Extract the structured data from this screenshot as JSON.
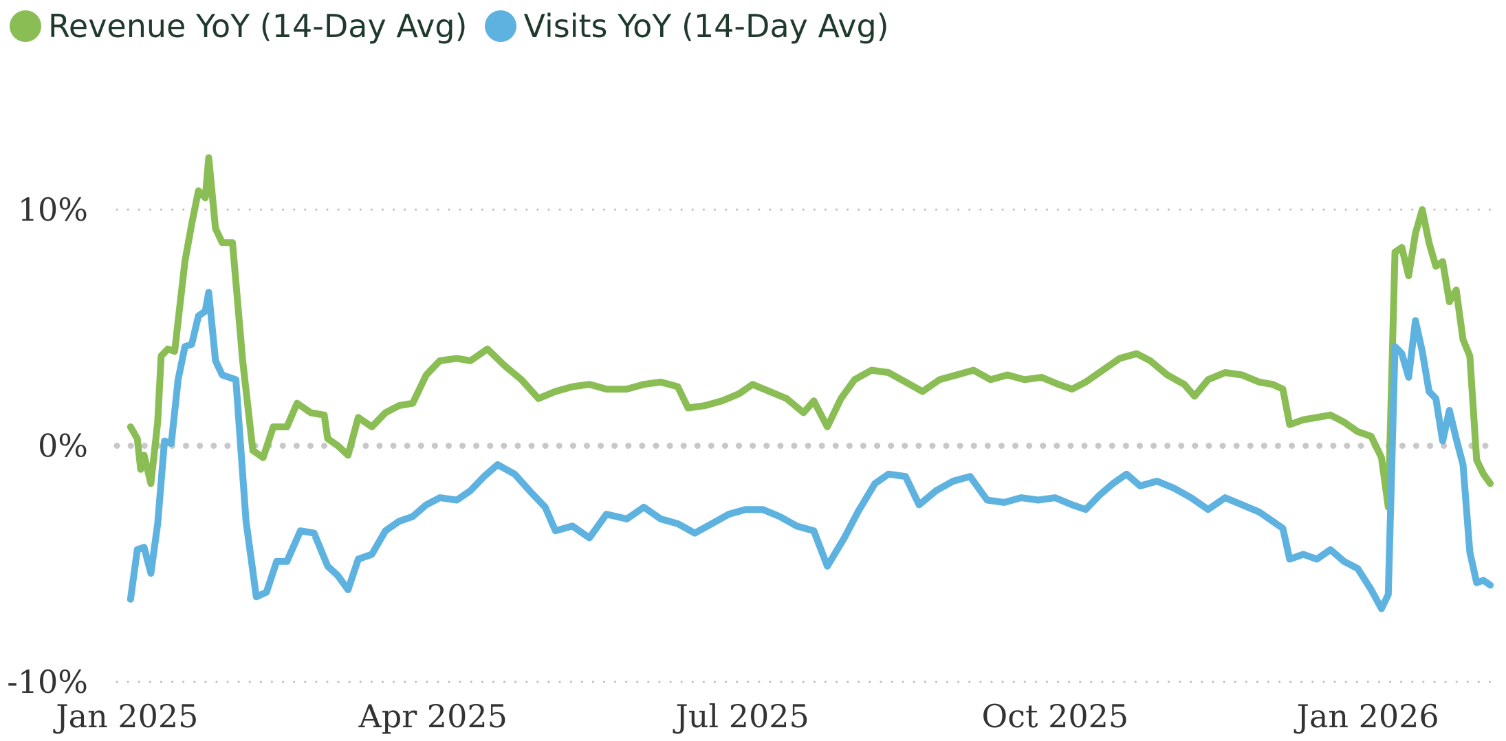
{
  "chart_data": {
    "type": "line",
    "title": "",
    "xlabel": "",
    "ylabel": "",
    "ylim": [
      -10,
      10
    ],
    "xlim": [
      "2024-12-29",
      "2026-02-07"
    ],
    "grid": "horizontal dotted",
    "legend_position": "top-left",
    "y_ticks": [
      {
        "value": 10,
        "label": "10%"
      },
      {
        "value": 0,
        "label": "0%"
      },
      {
        "value": -10,
        "label": "-10%"
      }
    ],
    "x_ticks": [
      {
        "date": "2025-01-01",
        "label": "Jan 2025"
      },
      {
        "date": "2025-04-01",
        "label": "Apr 2025"
      },
      {
        "date": "2025-07-01",
        "label": "Jul 2025"
      },
      {
        "date": "2025-10-01",
        "label": "Oct 2025"
      },
      {
        "date": "2026-01-01",
        "label": "Jan 2026"
      }
    ],
    "series": [
      {
        "name": "Revenue YoY (14-Day Avg)",
        "color": "#8bbd55",
        "points": [
          [
            "2025-01-02",
            0.8
          ],
          [
            "2025-01-04",
            0.3
          ],
          [
            "2025-01-05",
            -1.0
          ],
          [
            "2025-01-06",
            -0.4
          ],
          [
            "2025-01-08",
            -1.6
          ],
          [
            "2025-01-10",
            1.0
          ],
          [
            "2025-01-11",
            3.8
          ],
          [
            "2025-01-13",
            4.1
          ],
          [
            "2025-01-15",
            4.0
          ],
          [
            "2025-01-18",
            7.8
          ],
          [
            "2025-01-20",
            9.4
          ],
          [
            "2025-01-22",
            10.8
          ],
          [
            "2025-01-24",
            10.5
          ],
          [
            "2025-01-25",
            12.2
          ],
          [
            "2025-01-27",
            9.2
          ],
          [
            "2025-01-29",
            8.6
          ],
          [
            "2025-02-01",
            8.6
          ],
          [
            "2025-02-04",
            3.6
          ],
          [
            "2025-02-07",
            -0.2
          ],
          [
            "2025-02-10",
            -0.5
          ],
          [
            "2025-02-13",
            0.8
          ],
          [
            "2025-02-17",
            0.8
          ],
          [
            "2025-02-20",
            1.8
          ],
          [
            "2025-02-24",
            1.4
          ],
          [
            "2025-02-28",
            1.3
          ],
          [
            "2025-03-01",
            0.3
          ],
          [
            "2025-03-04",
            0.0
          ],
          [
            "2025-03-07",
            -0.4
          ],
          [
            "2025-03-10",
            1.2
          ],
          [
            "2025-03-14",
            0.8
          ],
          [
            "2025-03-18",
            1.4
          ],
          [
            "2025-03-22",
            1.7
          ],
          [
            "2025-03-26",
            1.8
          ],
          [
            "2025-03-30",
            3.0
          ],
          [
            "2025-04-03",
            3.6
          ],
          [
            "2025-04-08",
            3.7
          ],
          [
            "2025-04-12",
            3.6
          ],
          [
            "2025-04-17",
            4.1
          ],
          [
            "2025-04-22",
            3.4
          ],
          [
            "2025-04-27",
            2.8
          ],
          [
            "2025-05-02",
            2.0
          ],
          [
            "2025-05-07",
            2.3
          ],
          [
            "2025-05-12",
            2.5
          ],
          [
            "2025-05-17",
            2.6
          ],
          [
            "2025-05-22",
            2.4
          ],
          [
            "2025-05-28",
            2.4
          ],
          [
            "2025-06-02",
            2.6
          ],
          [
            "2025-06-07",
            2.7
          ],
          [
            "2025-06-12",
            2.5
          ],
          [
            "2025-06-15",
            1.6
          ],
          [
            "2025-06-20",
            1.7
          ],
          [
            "2025-06-25",
            1.9
          ],
          [
            "2025-06-30",
            2.2
          ],
          [
            "2025-07-04",
            2.6
          ],
          [
            "2025-07-09",
            2.3
          ],
          [
            "2025-07-14",
            2.0
          ],
          [
            "2025-07-19",
            1.4
          ],
          [
            "2025-07-22",
            1.9
          ],
          [
            "2025-07-26",
            0.8
          ],
          [
            "2025-07-30",
            2.0
          ],
          [
            "2025-08-03",
            2.8
          ],
          [
            "2025-08-08",
            3.2
          ],
          [
            "2025-08-13",
            3.1
          ],
          [
            "2025-08-18",
            2.7
          ],
          [
            "2025-08-23",
            2.3
          ],
          [
            "2025-08-28",
            2.8
          ],
          [
            "2025-09-02",
            3.0
          ],
          [
            "2025-09-07",
            3.2
          ],
          [
            "2025-09-12",
            2.8
          ],
          [
            "2025-09-17",
            3.0
          ],
          [
            "2025-09-22",
            2.8
          ],
          [
            "2025-09-27",
            2.9
          ],
          [
            "2025-10-02",
            2.6
          ],
          [
            "2025-10-06",
            2.4
          ],
          [
            "2025-10-10",
            2.7
          ],
          [
            "2025-10-15",
            3.2
          ],
          [
            "2025-10-20",
            3.7
          ],
          [
            "2025-10-25",
            3.9
          ],
          [
            "2025-10-29",
            3.6
          ],
          [
            "2025-11-03",
            3.0
          ],
          [
            "2025-11-08",
            2.6
          ],
          [
            "2025-11-11",
            2.1
          ],
          [
            "2025-11-15",
            2.8
          ],
          [
            "2025-11-20",
            3.1
          ],
          [
            "2025-11-25",
            3.0
          ],
          [
            "2025-11-30",
            2.7
          ],
          [
            "2025-12-04",
            2.6
          ],
          [
            "2025-12-07",
            2.4
          ],
          [
            "2025-12-09",
            0.9
          ],
          [
            "2025-12-13",
            1.1
          ],
          [
            "2025-12-17",
            1.2
          ],
          [
            "2025-12-21",
            1.3
          ],
          [
            "2025-12-25",
            1.0
          ],
          [
            "2025-12-29",
            0.6
          ],
          [
            "2026-01-02",
            0.4
          ],
          [
            "2026-01-05",
            -0.5
          ],
          [
            "2026-01-07",
            -2.6
          ],
          [
            "2026-01-09",
            8.2
          ],
          [
            "2026-01-11",
            8.4
          ],
          [
            "2026-01-13",
            7.2
          ],
          [
            "2026-01-15",
            9.0
          ],
          [
            "2026-01-17",
            10.0
          ],
          [
            "2026-01-19",
            8.6
          ],
          [
            "2026-01-21",
            7.6
          ],
          [
            "2026-01-23",
            7.8
          ],
          [
            "2026-01-25",
            6.1
          ],
          [
            "2026-01-27",
            6.6
          ],
          [
            "2026-01-29",
            4.5
          ],
          [
            "2026-01-31",
            3.8
          ],
          [
            "2026-02-02",
            -0.6
          ],
          [
            "2026-02-04",
            -1.2
          ],
          [
            "2026-02-06",
            -1.6
          ]
        ]
      },
      {
        "name": "Visits YoY (14-Day Avg)",
        "color": "#5eb2e0",
        "points": [
          [
            "2025-01-02",
            -6.5
          ],
          [
            "2025-01-04",
            -4.4
          ],
          [
            "2025-01-06",
            -4.3
          ],
          [
            "2025-01-08",
            -5.4
          ],
          [
            "2025-01-10",
            -3.3
          ],
          [
            "2025-01-12",
            0.2
          ],
          [
            "2025-01-14",
            0.1
          ],
          [
            "2025-01-16",
            2.8
          ],
          [
            "2025-01-18",
            4.2
          ],
          [
            "2025-01-20",
            4.3
          ],
          [
            "2025-01-22",
            5.5
          ],
          [
            "2025-01-24",
            5.7
          ],
          [
            "2025-01-25",
            6.5
          ],
          [
            "2025-01-27",
            3.6
          ],
          [
            "2025-01-29",
            3.0
          ],
          [
            "2025-02-02",
            2.8
          ],
          [
            "2025-02-05",
            -3.2
          ],
          [
            "2025-02-08",
            -6.4
          ],
          [
            "2025-02-11",
            -6.2
          ],
          [
            "2025-02-14",
            -4.9
          ],
          [
            "2025-02-17",
            -4.9
          ],
          [
            "2025-02-21",
            -3.6
          ],
          [
            "2025-02-25",
            -3.7
          ],
          [
            "2025-03-01",
            -5.1
          ],
          [
            "2025-03-04",
            -5.5
          ],
          [
            "2025-03-07",
            -6.1
          ],
          [
            "2025-03-10",
            -4.8
          ],
          [
            "2025-03-14",
            -4.6
          ],
          [
            "2025-03-18",
            -3.6
          ],
          [
            "2025-03-22",
            -3.2
          ],
          [
            "2025-03-26",
            -3.0
          ],
          [
            "2025-03-30",
            -2.5
          ],
          [
            "2025-04-03",
            -2.2
          ],
          [
            "2025-04-08",
            -2.3
          ],
          [
            "2025-04-12",
            -1.9
          ],
          [
            "2025-04-16",
            -1.3
          ],
          [
            "2025-04-20",
            -0.8
          ],
          [
            "2025-04-25",
            -1.2
          ],
          [
            "2025-04-30",
            -2.0
          ],
          [
            "2025-05-04",
            -2.6
          ],
          [
            "2025-05-07",
            -3.6
          ],
          [
            "2025-05-12",
            -3.4
          ],
          [
            "2025-05-17",
            -3.9
          ],
          [
            "2025-05-22",
            -2.9
          ],
          [
            "2025-05-28",
            -3.1
          ],
          [
            "2025-06-02",
            -2.6
          ],
          [
            "2025-06-07",
            -3.1
          ],
          [
            "2025-06-12",
            -3.3
          ],
          [
            "2025-06-17",
            -3.7
          ],
          [
            "2025-06-22",
            -3.3
          ],
          [
            "2025-06-27",
            -2.9
          ],
          [
            "2025-07-02",
            -2.7
          ],
          [
            "2025-07-07",
            -2.7
          ],
          [
            "2025-07-12",
            -3.0
          ],
          [
            "2025-07-17",
            -3.4
          ],
          [
            "2025-07-22",
            -3.6
          ],
          [
            "2025-07-26",
            -5.1
          ],
          [
            "2025-07-31",
            -3.9
          ],
          [
            "2025-08-04",
            -2.8
          ],
          [
            "2025-08-09",
            -1.6
          ],
          [
            "2025-08-13",
            -1.2
          ],
          [
            "2025-08-18",
            -1.3
          ],
          [
            "2025-08-22",
            -2.5
          ],
          [
            "2025-08-27",
            -1.9
          ],
          [
            "2025-09-01",
            -1.5
          ],
          [
            "2025-09-06",
            -1.3
          ],
          [
            "2025-09-11",
            -2.3
          ],
          [
            "2025-09-16",
            -2.4
          ],
          [
            "2025-09-21",
            -2.2
          ],
          [
            "2025-09-26",
            -2.3
          ],
          [
            "2025-10-01",
            -2.2
          ],
          [
            "2025-10-06",
            -2.5
          ],
          [
            "2025-10-10",
            -2.7
          ],
          [
            "2025-10-14",
            -2.1
          ],
          [
            "2025-10-18",
            -1.6
          ],
          [
            "2025-10-22",
            -1.2
          ],
          [
            "2025-10-26",
            -1.7
          ],
          [
            "2025-10-31",
            -1.5
          ],
          [
            "2025-11-05",
            -1.8
          ],
          [
            "2025-11-10",
            -2.2
          ],
          [
            "2025-11-15",
            -2.7
          ],
          [
            "2025-11-20",
            -2.2
          ],
          [
            "2025-11-25",
            -2.5
          ],
          [
            "2025-11-30",
            -2.8
          ],
          [
            "2025-12-04",
            -3.2
          ],
          [
            "2025-12-07",
            -3.5
          ],
          [
            "2025-12-09",
            -4.8
          ],
          [
            "2025-12-13",
            -4.6
          ],
          [
            "2025-12-17",
            -4.8
          ],
          [
            "2025-12-21",
            -4.4
          ],
          [
            "2025-12-25",
            -4.9
          ],
          [
            "2025-12-29",
            -5.2
          ],
          [
            "2026-01-02",
            -6.1
          ],
          [
            "2026-01-05",
            -6.9
          ],
          [
            "2026-01-07",
            -6.3
          ],
          [
            "2026-01-09",
            4.2
          ],
          [
            "2026-01-11",
            3.9
          ],
          [
            "2026-01-13",
            2.9
          ],
          [
            "2026-01-15",
            5.3
          ],
          [
            "2026-01-17",
            4.0
          ],
          [
            "2026-01-19",
            2.3
          ],
          [
            "2026-01-21",
            2.0
          ],
          [
            "2026-01-23",
            0.2
          ],
          [
            "2026-01-25",
            1.5
          ],
          [
            "2026-01-27",
            0.3
          ],
          [
            "2026-01-29",
            -0.8
          ],
          [
            "2026-01-31",
            -4.5
          ],
          [
            "2026-02-02",
            -5.8
          ],
          [
            "2026-02-04",
            -5.7
          ],
          [
            "2026-02-06",
            -5.9
          ]
        ]
      }
    ]
  }
}
